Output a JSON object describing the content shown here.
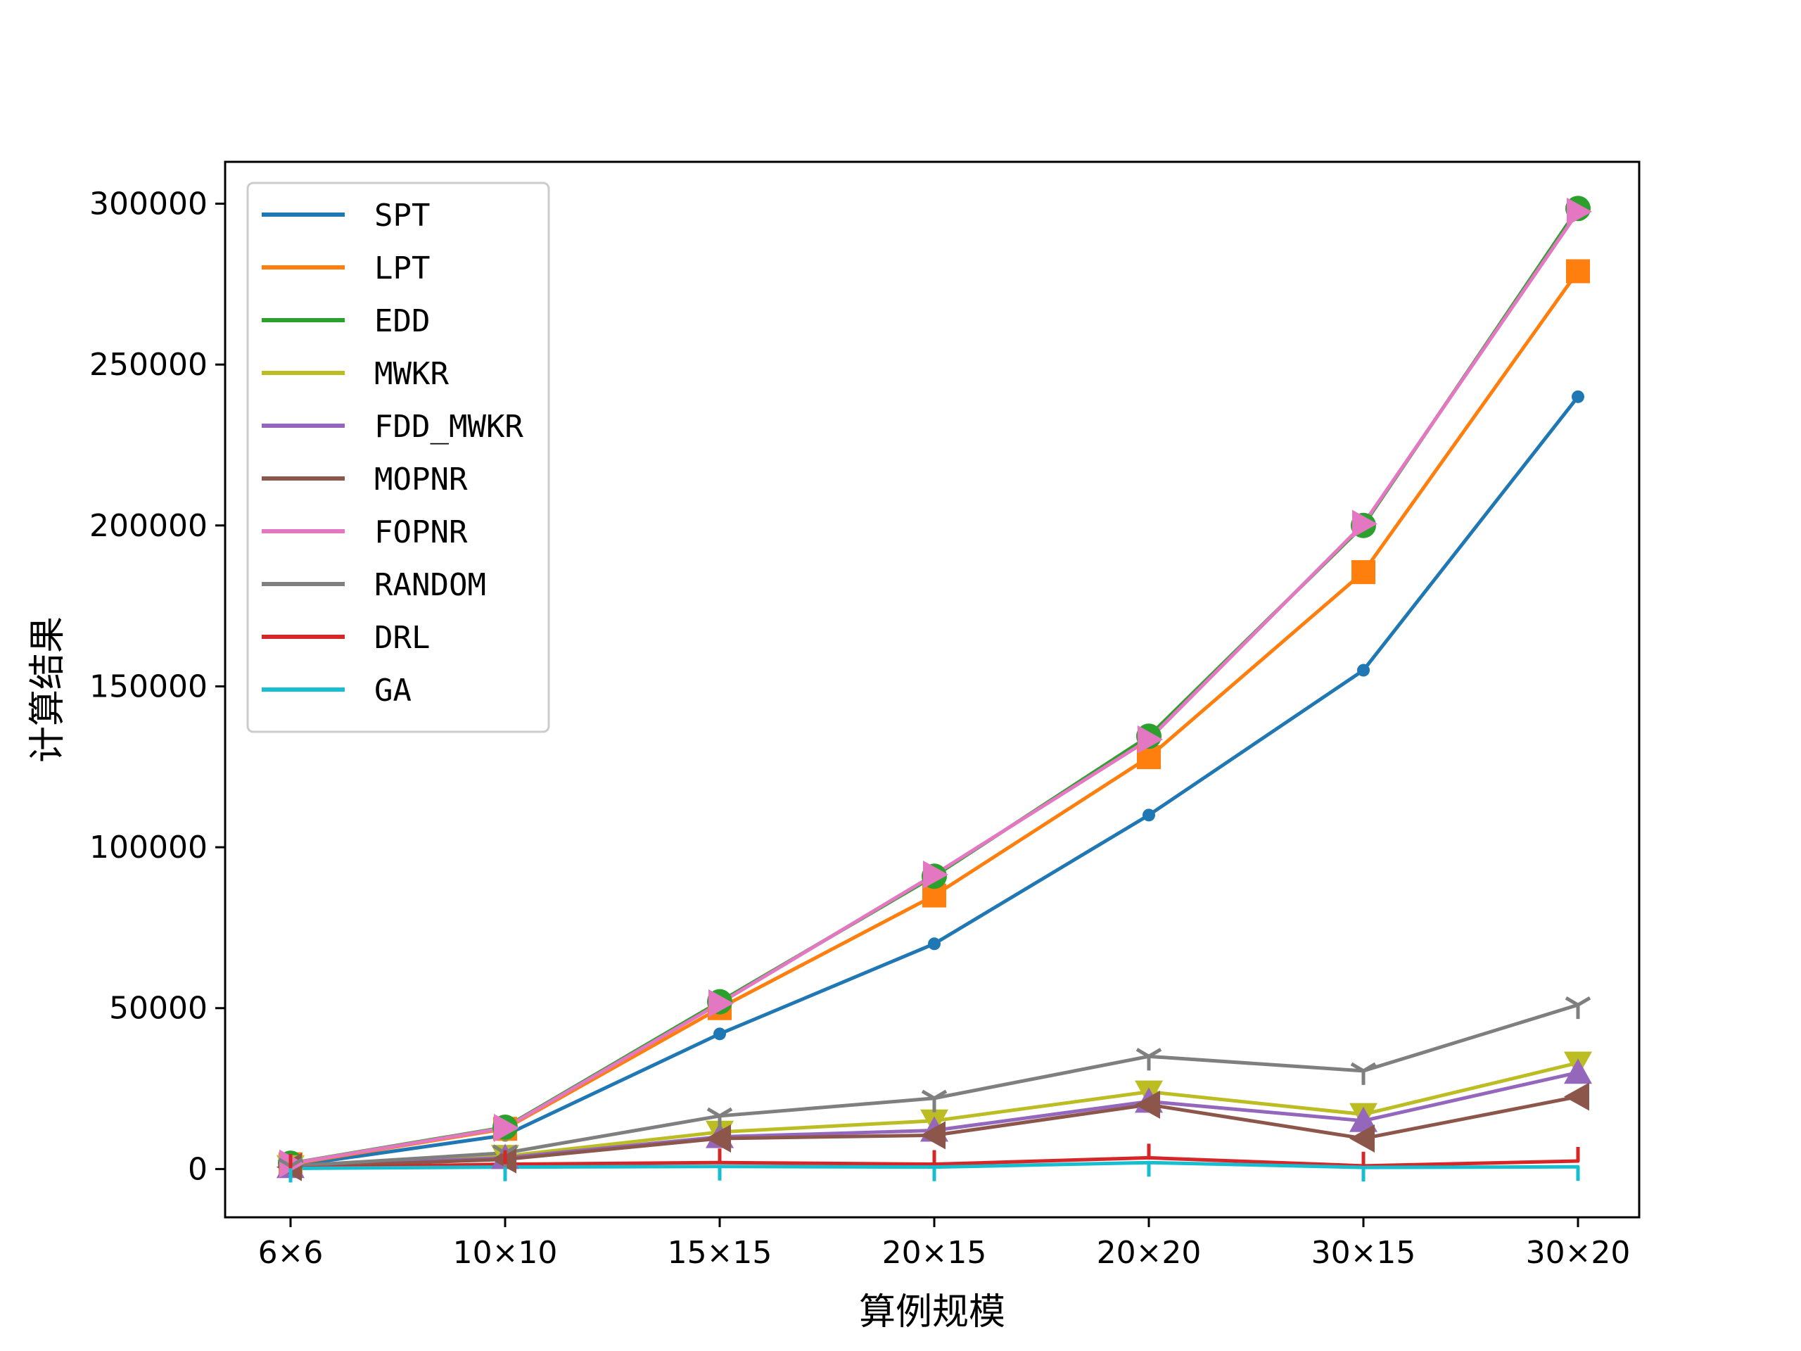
{
  "chart_data": {
    "type": "line",
    "title": "",
    "xlabel": "算例规模",
    "ylabel": "计算结果",
    "categories": [
      "6×6",
      "10×10",
      "15×15",
      "20×15",
      "20×20",
      "30×15",
      "30×20"
    ],
    "ylim": [
      -15000,
      313000
    ],
    "yticks": [
      0,
      50000,
      100000,
      150000,
      200000,
      250000,
      300000
    ],
    "ytick_labels": [
      "0",
      "50000",
      "100000",
      "150000",
      "200000",
      "250000",
      "300000"
    ],
    "grid": false,
    "legend_position": "top-left",
    "series": [
      {
        "name": "SPT",
        "color": "#1f77b4",
        "marker": "point",
        "values": [
          1000,
          10500,
          42000,
          70000,
          110000,
          155000,
          240000
        ]
      },
      {
        "name": "LPT",
        "color": "#ff7f0e",
        "marker": "square",
        "values": [
          1500,
          12500,
          50000,
          85000,
          128000,
          185500,
          279000
        ]
      },
      {
        "name": "EDD",
        "color": "#2ca02c",
        "marker": "circle",
        "values": [
          1800,
          13000,
          52000,
          91000,
          134500,
          200000,
          298500
        ]
      },
      {
        "name": "MWKR",
        "color": "#bcbd22",
        "marker": "triangle-down",
        "values": [
          800,
          4000,
          11500,
          15000,
          24000,
          17000,
          33000
        ]
      },
      {
        "name": "FDD_MWKR",
        "color": "#9467bd",
        "marker": "triangle-up",
        "values": [
          700,
          3500,
          10000,
          12000,
          21000,
          15000,
          30000
        ]
      },
      {
        "name": "MOPNR",
        "color": "#8c564b",
        "marker": "triangle-left",
        "values": [
          600,
          3000,
          9500,
          10500,
          20000,
          9500,
          22500
        ]
      },
      {
        "name": "FOPNR",
        "color": "#e377c2",
        "marker": "triangle-right",
        "values": [
          1700,
          12800,
          51500,
          91500,
          133500,
          200500,
          297500
        ]
      },
      {
        "name": "RANDOM",
        "color": "#7f7f7f",
        "marker": "tri-down",
        "values": [
          900,
          5000,
          16500,
          22000,
          35000,
          30500,
          51000
        ]
      },
      {
        "name": "DRL",
        "color": "#d62728",
        "marker": "tick-up",
        "values": [
          300,
          1500,
          2000,
          1500,
          3500,
          1000,
          2500
        ]
      },
      {
        "name": "GA",
        "color": "#17becf",
        "marker": "tick-down",
        "values": [
          200,
          600,
          800,
          600,
          2000,
          500,
          700
        ]
      }
    ]
  }
}
